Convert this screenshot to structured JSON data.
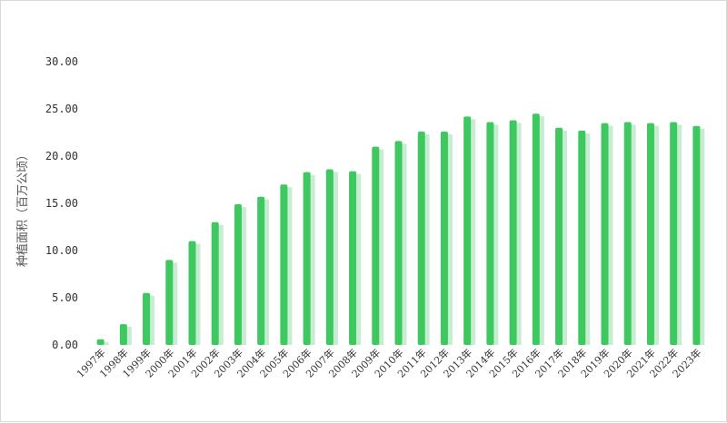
{
  "chart_data": {
    "type": "bar",
    "ylabel": "种植面积（百万公顷）",
    "xlabel": "",
    "ylim": [
      0,
      30
    ],
    "yticks": [
      "0.00",
      "5.00",
      "10.00",
      "15.00",
      "20.00",
      "25.00",
      "30.00"
    ],
    "grid": false,
    "categories": [
      "1997年",
      "1998年",
      "1999年",
      "2000年",
      "2001年",
      "2002年",
      "2003年",
      "2004年",
      "2005年",
      "2006年",
      "2007年",
      "2008年",
      "2009年",
      "2010年",
      "2011年",
      "2012年",
      "2013年",
      "2014年",
      "2015年",
      "2016年",
      "2017年",
      "2018年",
      "2019年",
      "2020年",
      "2021年",
      "2022年",
      "2023年"
    ],
    "values": [
      0.6,
      2.2,
      5.5,
      9.0,
      11.0,
      13.0,
      14.9,
      15.7,
      17.0,
      18.3,
      18.6,
      18.4,
      21.0,
      21.6,
      22.6,
      22.6,
      24.2,
      23.6,
      23.8,
      24.5,
      23.0,
      22.7,
      23.5,
      23.6,
      23.5,
      23.6,
      23.2
    ],
    "bar_color": "#3ec860",
    "shadow_color": "#c8ecd1"
  }
}
